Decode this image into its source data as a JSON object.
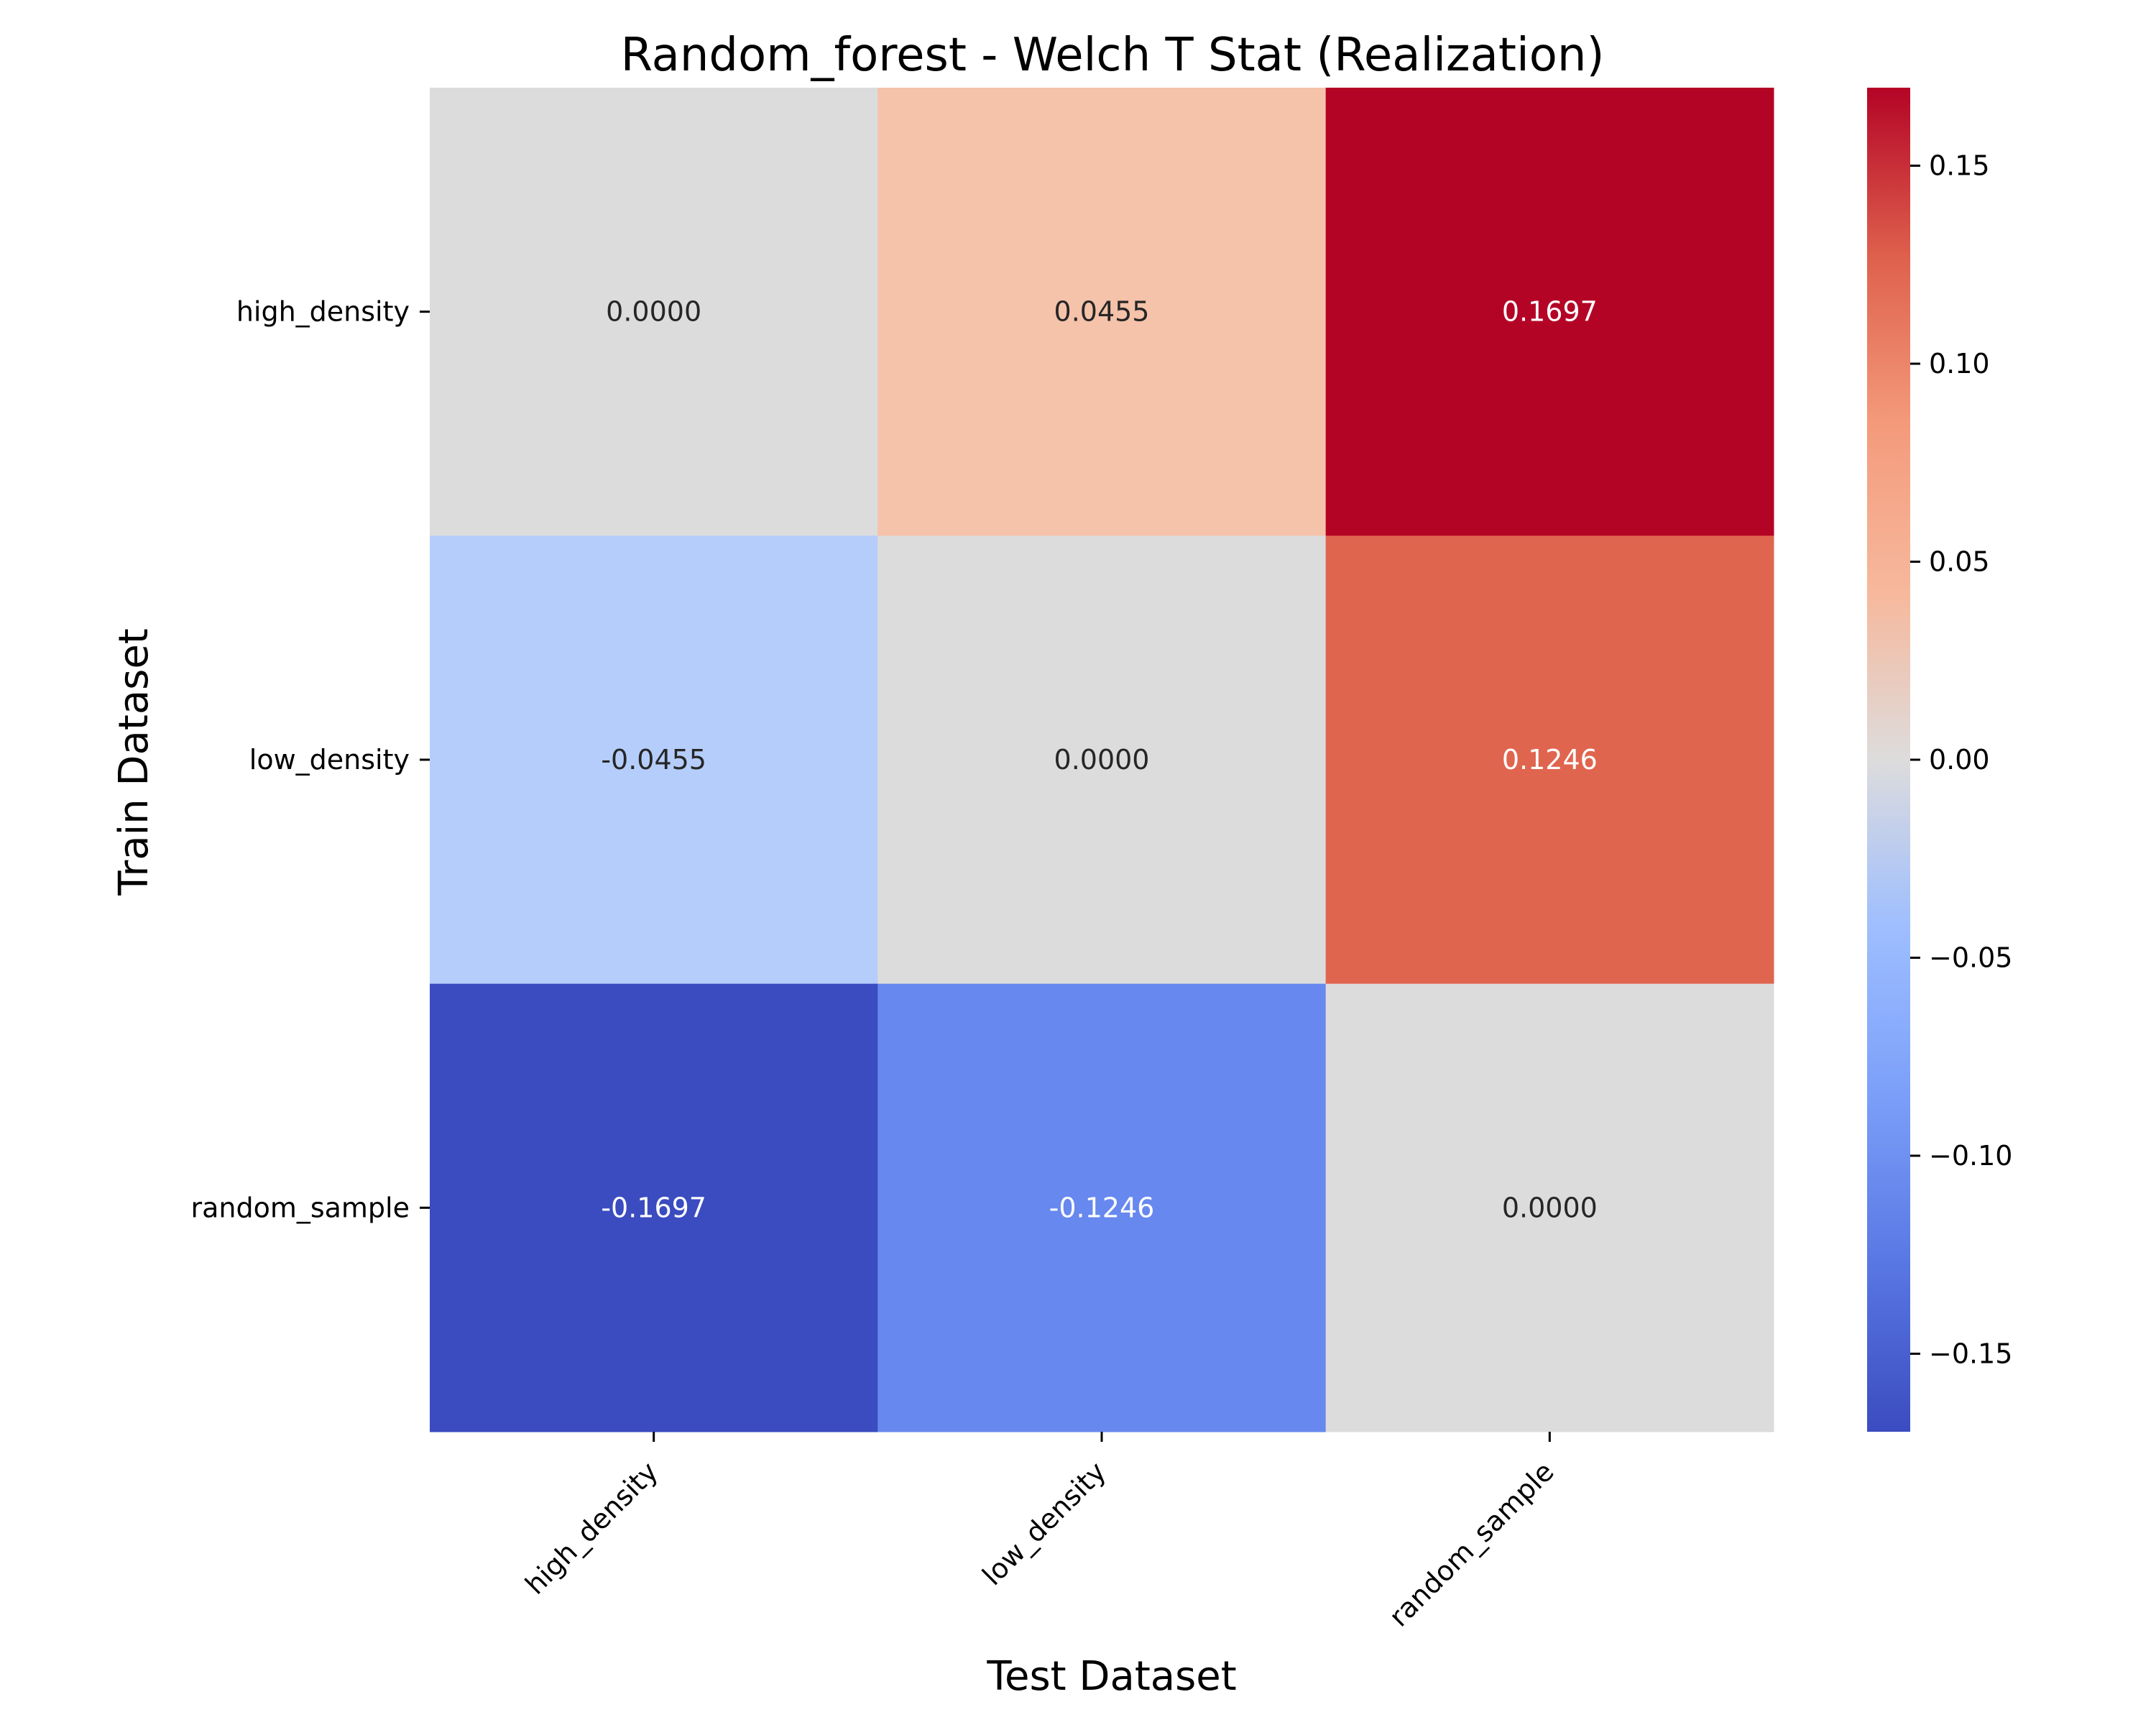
{
  "chart_data": {
    "type": "heatmap",
    "title": "Random_forest - Welch T Stat (Realization)",
    "xlabel": "Test Dataset",
    "ylabel": "Train Dataset",
    "x_categories": [
      "high_density",
      "low_density",
      "random_sample"
    ],
    "y_categories": [
      "high_density",
      "low_density",
      "random_sample"
    ],
    "values": [
      [
        0.0,
        0.0455,
        0.1697
      ],
      [
        -0.0455,
        0.0,
        0.1246
      ],
      [
        -0.1697,
        -0.1246,
        0.0
      ]
    ],
    "cell_labels": [
      [
        "0.0000",
        "0.0455",
        "0.1697"
      ],
      [
        "-0.0455",
        "0.0000",
        "0.1246"
      ],
      [
        "-0.1697",
        "-0.1246",
        "0.0000"
      ]
    ],
    "colormap": "coolwarm",
    "colorbar": {
      "vmin": -0.1697,
      "vmax": 0.1697,
      "ticks": [
        0.15,
        0.1,
        0.05,
        0.0,
        -0.05,
        -0.1,
        -0.15
      ],
      "tick_labels": [
        "0.15",
        "0.10",
        "0.05",
        "0.00",
        "−0.05",
        "−0.10",
        "−0.15"
      ]
    },
    "cell_colors": [
      [
        "#dddcdc",
        "#f5c2aa",
        "#b40426"
      ],
      [
        "#b5cdfa",
        "#dddcdc",
        "#e0654f"
      ],
      [
        "#3b4cc0",
        "#6788ee",
        "#dddcdc"
      ]
    ]
  }
}
